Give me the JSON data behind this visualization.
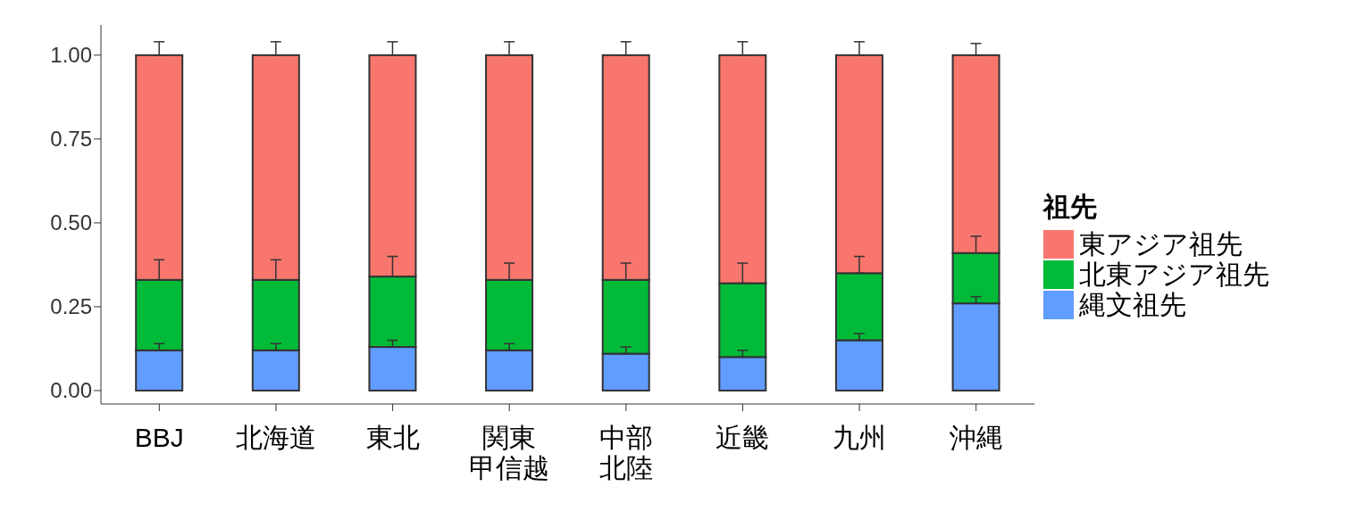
{
  "chart_data": {
    "type": "bar",
    "stacked": true,
    "legend_title": "祖先",
    "legend": "right",
    "categories": [
      "BBJ",
      "北海道",
      "東北",
      "関東甲信越",
      "中部北陸",
      "近畿",
      "九州",
      "沖縄"
    ],
    "series": [
      {
        "name": "縄文祖先",
        "color": "#619cff",
        "values": [
          0.12,
          0.12,
          0.13,
          0.12,
          0.11,
          0.1,
          0.15,
          0.26
        ],
        "errors": [
          [
            0.12,
            0.14
          ],
          [
            0.12,
            0.14
          ],
          [
            0.13,
            0.15
          ],
          [
            0.12,
            0.14
          ],
          [
            0.11,
            0.13
          ],
          [
            0.1,
            0.12
          ],
          [
            0.15,
            0.17
          ],
          [
            0.26,
            0.28
          ]
        ]
      },
      {
        "name": "北東アジア祖先",
        "color": "#00ba38",
        "values": [
          0.21,
          0.21,
          0.21,
          0.21,
          0.22,
          0.22,
          0.2,
          0.15
        ],
        "errors": [
          [
            0.33,
            0.39
          ],
          [
            0.33,
            0.39
          ],
          [
            0.34,
            0.4
          ],
          [
            0.33,
            0.38
          ],
          [
            0.33,
            0.38
          ],
          [
            0.32,
            0.38
          ],
          [
            0.35,
            0.4
          ],
          [
            0.41,
            0.46
          ]
        ]
      },
      {
        "name": "東アジア祖先",
        "color": "#f8766d",
        "values": [
          0.67,
          0.67,
          0.66,
          0.67,
          0.67,
          0.68,
          0.65,
          0.59
        ],
        "errors": [
          [
            1.0,
            1.04
          ],
          [
            1.0,
            1.04
          ],
          [
            1.0,
            1.04
          ],
          [
            1.0,
            1.04
          ],
          [
            1.0,
            1.04
          ],
          [
            1.0,
            1.04
          ],
          [
            1.0,
            1.04
          ],
          [
            1.0,
            1.035
          ]
        ]
      }
    ],
    "ylim": [
      -0.04,
      1.09
    ],
    "yticks": [
      {
        "value": 0,
        "label": "0.00"
      },
      {
        "value": 0.25,
        "label": "0.25"
      },
      {
        "value": 0.5,
        "label": "0.50"
      },
      {
        "value": 0.75,
        "label": "0.75"
      },
      {
        "value": 1,
        "label": "1.00"
      }
    ]
  }
}
